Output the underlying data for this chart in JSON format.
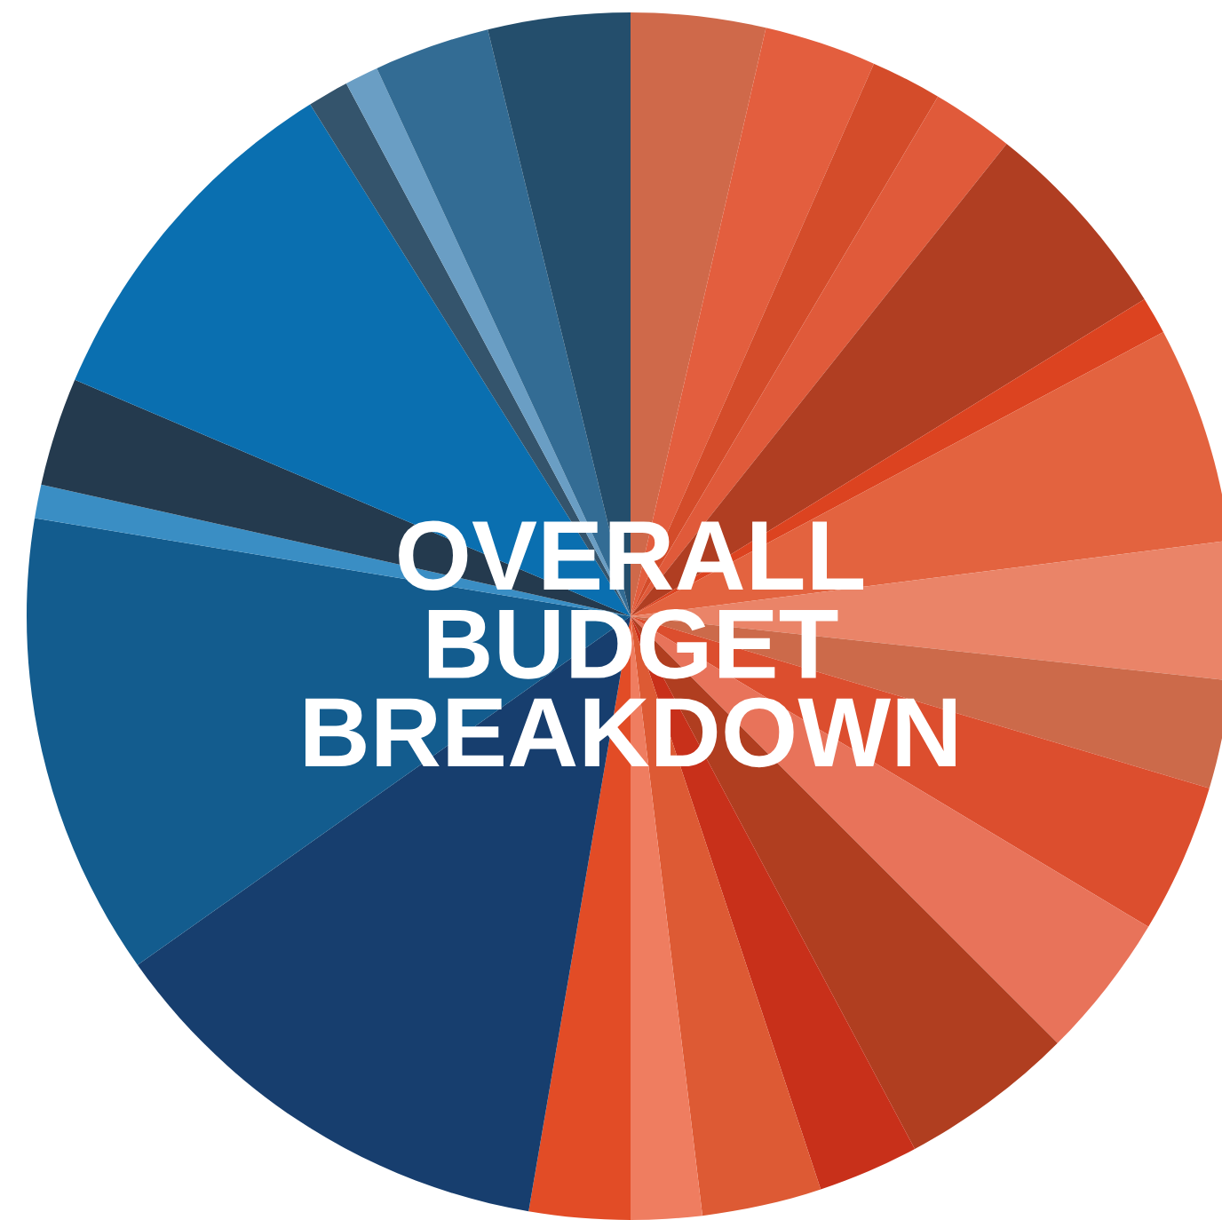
{
  "chart_data": {
    "type": "pie",
    "title": "OVERALL\nBUDGET\nBREAKDOWN",
    "categories": [
      null,
      null,
      null,
      null,
      null,
      null,
      null,
      null,
      null,
      null,
      null,
      null,
      null,
      null,
      null,
      null,
      null,
      null,
      null,
      null,
      null,
      null,
      null,
      null,
      null
    ],
    "values": [
      3.6,
      3.0,
      1.9,
      2.2,
      5.5,
      1.0,
      5.8,
      3.7,
      2.9,
      4.0,
      3.9,
      4.7,
      2.7,
      3.2,
      1.9,
      2.7,
      12.5,
      12.4,
      0.9,
      2.9,
      9.7,
      1.1,
      0.9,
      3.1,
      3.8
    ],
    "colors": [
      "#cf694a",
      "#e35e3e",
      "#d44c2a",
      "#e05a3a",
      "#b03e22",
      "#dc4320",
      "#e3633f",
      "#ea8468",
      "#cc6a4a",
      "#dc4e2e",
      "#e8735a",
      "#b03e20",
      "#c8301a",
      "#dd5a34",
      "#ef7d60",
      "#e24c26",
      "#173e6e",
      "#135c8e",
      "#3a8ec4",
      "#243a4e",
      "#0a6fb0",
      "#34546c",
      "#6a9ec4",
      "#336c94",
      "#244e6c"
    ]
  }
}
